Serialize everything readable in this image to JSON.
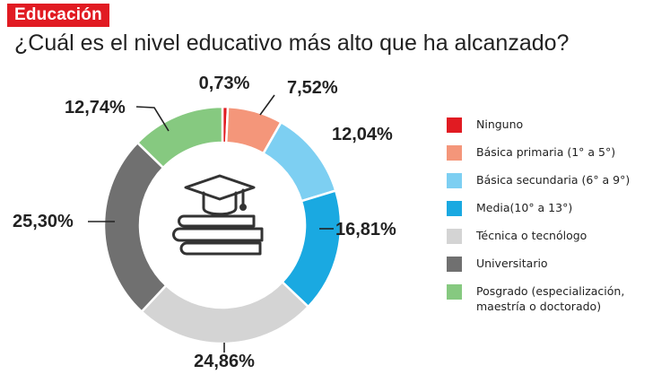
{
  "header": {
    "tag": "Educación",
    "question": "¿Cuál es el nivel educativo más alto que ha alcanzado?"
  },
  "icon": "graduation-cap-on-books-icon",
  "chart_data": {
    "type": "pie",
    "style": "donut",
    "legend_placement": "right",
    "categories": [
      "Ninguno",
      "Básica primaria (1° a 5°)",
      "Básica secundaria (6° a 9°)",
      "Media(10° a 13°)",
      "Técnica o tecnólogo",
      "Universitario",
      "Posgrado (especialización, maestría o doctorado)"
    ],
    "values": [
      0.73,
      7.52,
      12.04,
      16.81,
      24.86,
      25.3,
      12.74
    ],
    "labels": [
      "0,73%",
      "7,52%",
      "12,04%",
      "16,81%",
      "24,86%",
      "25,30%",
      "12,74%"
    ],
    "colors": [
      "#e11b22",
      "#f4967a",
      "#7dcff2",
      "#1aa9e1",
      "#d4d4d4",
      "#707070",
      "#86c980"
    ]
  }
}
